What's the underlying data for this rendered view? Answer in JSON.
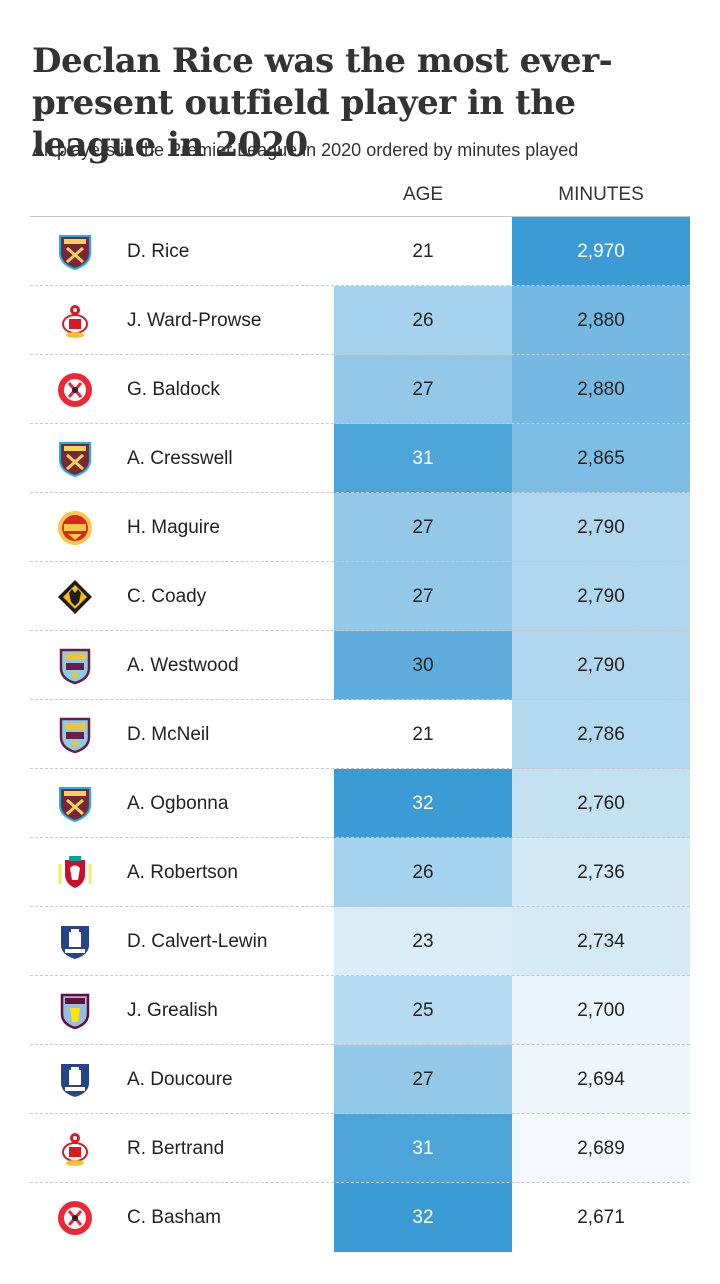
{
  "title": "Declan Rice was the most ever-present outfield player in the league in 2020",
  "subtitle": "All players in the Premier League in 2020 ordered by minutes played",
  "colors": {
    "scale_low": "#ffffff",
    "scale_high": "#3a9bd5",
    "text_dark": "#222222",
    "text_light": "#ffffff"
  },
  "chart_data": {
    "type": "table",
    "columns": [
      "",
      "",
      "AGE",
      "MINUTES"
    ],
    "age_scale": [
      21,
      32
    ],
    "minutes_scale": [
      2671,
      2970
    ],
    "rows": [
      {
        "club": "West Ham",
        "badge": "westham-badge-icon",
        "player": "D. Rice",
        "age": 21,
        "minutes": "2,970",
        "minutes_value": 2970
      },
      {
        "club": "Southampton",
        "badge": "southampton-badge-icon",
        "player": "J. Ward-Prowse",
        "age": 26,
        "minutes": "2,880",
        "minutes_value": 2880
      },
      {
        "club": "Sheffield United",
        "badge": "sheffield-badge-icon",
        "player": "G. Baldock",
        "age": 27,
        "minutes": "2,880",
        "minutes_value": 2880
      },
      {
        "club": "West Ham",
        "badge": "westham-badge-icon",
        "player": "A. Cresswell",
        "age": 31,
        "minutes": "2,865",
        "minutes_value": 2865
      },
      {
        "club": "Manchester United",
        "badge": "manutd-badge-icon",
        "player": "H. Maguire",
        "age": 27,
        "minutes": "2,790",
        "minutes_value": 2790
      },
      {
        "club": "Wolves",
        "badge": "wolves-badge-icon",
        "player": "C. Coady",
        "age": 27,
        "minutes": "2,790",
        "minutes_value": 2790
      },
      {
        "club": "Burnley",
        "badge": "burnley-badge-icon",
        "player": "A. Westwood",
        "age": 30,
        "minutes": "2,790",
        "minutes_value": 2790
      },
      {
        "club": "Burnley",
        "badge": "burnley-badge-icon",
        "player": "D. McNeil",
        "age": 21,
        "minutes": "2,786",
        "minutes_value": 2786
      },
      {
        "club": "West Ham",
        "badge": "westham-badge-icon",
        "player": "A. Ogbonna",
        "age": 32,
        "minutes": "2,760",
        "minutes_value": 2760
      },
      {
        "club": "Liverpool",
        "badge": "liverpool-badge-icon",
        "player": "A. Robertson",
        "age": 26,
        "minutes": "2,736",
        "minutes_value": 2736
      },
      {
        "club": "Everton",
        "badge": "everton-badge-icon",
        "player": "D. Calvert-Lewin",
        "age": 23,
        "minutes": "2,734",
        "minutes_value": 2734
      },
      {
        "club": "Aston Villa",
        "badge": "villa-badge-icon",
        "player": "J. Grealish",
        "age": 25,
        "minutes": "2,700",
        "minutes_value": 2700
      },
      {
        "club": "Everton",
        "badge": "everton-badge-icon",
        "player": "A. Doucoure",
        "age": 27,
        "minutes": "2,694",
        "minutes_value": 2694
      },
      {
        "club": "Southampton",
        "badge": "southampton-badge-icon",
        "player": "R. Bertrand",
        "age": 31,
        "minutes": "2,689",
        "minutes_value": 2689
      },
      {
        "club": "Sheffield United",
        "badge": "sheffield-badge-icon",
        "player": "C. Basham",
        "age": 32,
        "minutes": "2,671",
        "minutes_value": 2671
      }
    ]
  }
}
